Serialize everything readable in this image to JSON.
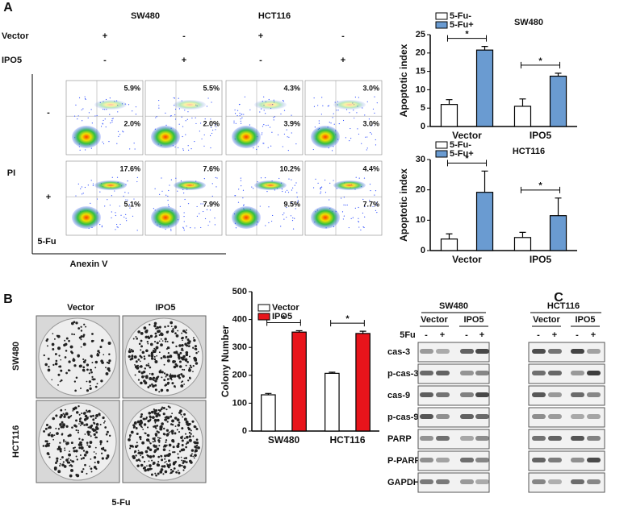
{
  "panel_labels": [
    "A",
    "B",
    "C"
  ],
  "flow": {
    "columns": [
      "SW480",
      "HCT116"
    ],
    "rows": [
      {
        "label": "Vector",
        "marks": [
          "+",
          "-",
          "+",
          "-"
        ]
      },
      {
        "label": "IPO5",
        "marks": [
          "-",
          "+",
          "-",
          "+"
        ]
      }
    ],
    "y_axis": "PI",
    "x_axis": "Anexin V",
    "treatment": "5-Fu",
    "row_marks": [
      "-",
      "+"
    ],
    "plots": [
      [
        {
          "upper": "5.9%",
          "lower": "2.0%"
        },
        {
          "upper": "5.5%",
          "lower": "2.0%"
        },
        {
          "upper": "4.3%",
          "lower": "3.9%"
        },
        {
          "upper": "3.0%",
          "lower": "3.0%"
        }
      ],
      [
        {
          "upper": "17.6%",
          "lower": "5.1%"
        },
        {
          "upper": "7.6%",
          "lower": "7.9%"
        },
        {
          "upper": "10.2%",
          "lower": "9.5%"
        },
        {
          "upper": "4.4%",
          "lower": "7.7%"
        }
      ]
    ]
  },
  "colony": {
    "columns": [
      "Vector",
      "IPO5"
    ],
    "rows": [
      "SW480",
      "HCT116"
    ],
    "treatment": "5-Fu"
  },
  "western": {
    "cell_lines": [
      "SW480",
      "HCT116"
    ],
    "groups": [
      "Vector",
      "IPO5",
      "Vector",
      "IPO5"
    ],
    "treatment": "5Fu",
    "marks": [
      "-",
      "+",
      "-",
      "+",
      "-",
      "+",
      "-",
      "+"
    ],
    "proteins": [
      "cas-3",
      "p-cas-3",
      "cas-9",
      "p-cas-9",
      "PARP",
      "P-PARP",
      "GAPDH"
    ]
  },
  "chart_data": [
    {
      "type": "bar",
      "title": "SW480",
      "y_label": "Apoptotic index",
      "categories": [
        "Vector",
        "IPO5"
      ],
      "series": [
        {
          "name": "5-Fu-",
          "color": "#ffffff",
          "values": [
            6,
            5.5
          ],
          "errors": [
            1.3,
            2
          ]
        },
        {
          "name": "5-Fu+",
          "color": "#6a9bd1",
          "values": [
            20.8,
            13.7
          ],
          "errors": [
            1,
            0.8
          ]
        }
      ],
      "ylim": [
        0,
        25
      ],
      "yticks": [
        0,
        5,
        10,
        15,
        20,
        25
      ],
      "annotations": [
        "*",
        "*"
      ],
      "legend": "top-left"
    },
    {
      "type": "bar",
      "title": "HCT116",
      "y_label": "Apoptotic index",
      "categories": [
        "Vector",
        "IPO5"
      ],
      "series": [
        {
          "name": "5-Fu-",
          "color": "#ffffff",
          "values": [
            3.8,
            4.3
          ],
          "errors": [
            1.7,
            1.7
          ]
        },
        {
          "name": "5-Fu+",
          "color": "#6a9bd1",
          "values": [
            19.2,
            11.5
          ],
          "errors": [
            7,
            5.8
          ]
        }
      ],
      "ylim": [
        0,
        30
      ],
      "yticks": [
        0,
        10,
        20,
        30
      ],
      "annotations": [
        "*",
        "*"
      ],
      "legend": "top-left"
    },
    {
      "type": "bar",
      "y_label": "Colony Number",
      "categories": [
        "SW480",
        "HCT116"
      ],
      "series": [
        {
          "name": "Vector",
          "color": "#ffffff",
          "values": [
            130,
            207
          ],
          "errors": [
            5,
            4
          ]
        },
        {
          "name": "IPO5",
          "color": "#e8141b",
          "values": [
            355,
            350
          ],
          "errors": [
            5,
            8
          ]
        }
      ],
      "ylim": [
        0,
        500
      ],
      "yticks": [
        0,
        100,
        200,
        300,
        400,
        500
      ],
      "annotations": [
        "*",
        "*"
      ],
      "legend": "top-left"
    }
  ]
}
